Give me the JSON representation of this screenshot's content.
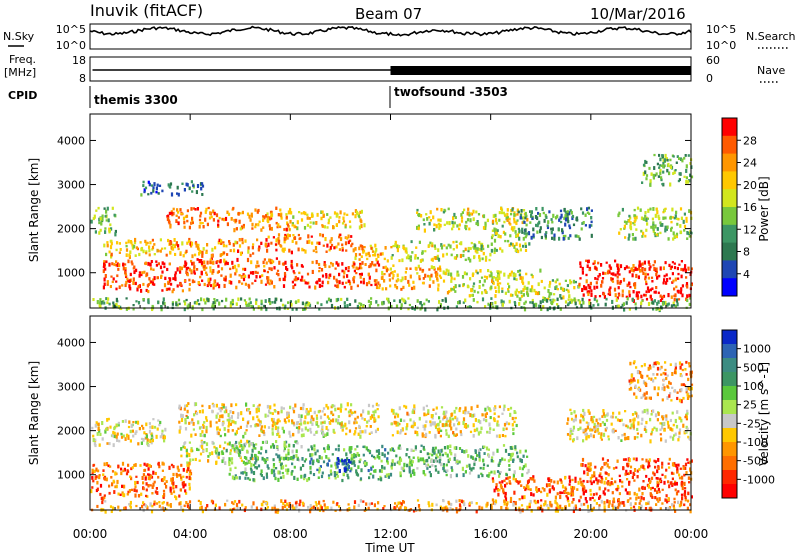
{
  "header": {
    "station": "Inuvik (fitACF)",
    "beam": "Beam 07",
    "date": "10/Mar/2016"
  },
  "top_panels": {
    "nsky_label": "N.Sky",
    "nsearch_label": "N.Search",
    "noise_ticks": [
      "10^5",
      "10^0"
    ],
    "freq_label_line1": "Freq.",
    "freq_label_line2": "[MHz]",
    "freq_ticks": [
      "18",
      "8"
    ],
    "nave_label": "Nave",
    "nave_ticks": [
      "60",
      "0"
    ],
    "cpid_label": "CPID",
    "cpid_segments": [
      {
        "name": "themis 3300",
        "start_hour": 0
      },
      {
        "name": "twofsound -3503",
        "start_hour": 12
      }
    ]
  },
  "chart_data": [
    {
      "type": "heatmap",
      "name": "power",
      "ylabel": "Slant Range [km]",
      "xlim_hours": [
        0,
        24
      ],
      "ylim": [
        200,
        4600
      ],
      "yticks": [
        1000,
        2000,
        3000,
        4000
      ],
      "colorbar": {
        "label": "Power [dB]",
        "ticks": [
          "28",
          "24",
          "20",
          "16",
          "12",
          "8",
          "4"
        ],
        "colors": [
          "#ff0000",
          "#ff5a00",
          "#ff9600",
          "#ffc800",
          "#d2e61e",
          "#78c83c",
          "#3c9664",
          "#2d7850",
          "#1e46b4",
          "#0000ff"
        ]
      },
      "regions": [
        {
          "t0": 0.5,
          "t1": 4.0,
          "r0": 600,
          "r1": 1300,
          "level": 0.9
        },
        {
          "t0": 4.0,
          "t1": 8.0,
          "r0": 700,
          "r1": 1350,
          "level": 0.85
        },
        {
          "t0": 8.0,
          "t1": 11.5,
          "r0": 700,
          "r1": 1300,
          "level": 0.9
        },
        {
          "t0": 11.5,
          "t1": 14.0,
          "r0": 650,
          "r1": 1200,
          "level": 0.7
        },
        {
          "t0": 14.0,
          "t1": 18.0,
          "r0": 500,
          "r1": 1100,
          "level": 0.55
        },
        {
          "t0": 18.0,
          "t1": 19.5,
          "r0": 400,
          "r1": 900,
          "level": 0.5
        },
        {
          "t0": 19.5,
          "t1": 24.0,
          "r0": 400,
          "r1": 1300,
          "level": 0.95
        },
        {
          "t0": 0.5,
          "t1": 3.0,
          "r0": 1400,
          "r1": 1800,
          "level": 0.65
        },
        {
          "t0": 3.0,
          "t1": 6.5,
          "r0": 1400,
          "r1": 1800,
          "level": 0.75
        },
        {
          "t0": 6.5,
          "t1": 10.5,
          "r0": 1500,
          "r1": 1900,
          "level": 0.8
        },
        {
          "t0": 10.5,
          "t1": 12.0,
          "r0": 1300,
          "r1": 1700,
          "level": 0.7
        },
        {
          "t0": 12.0,
          "t1": 16.0,
          "r0": 1300,
          "r1": 1750,
          "level": 0.55
        },
        {
          "t0": 16.0,
          "t1": 17.5,
          "r0": 1500,
          "r1": 2000,
          "level": 0.5
        },
        {
          "t0": 3.0,
          "t1": 5.5,
          "r0": 2050,
          "r1": 2500,
          "level": 0.8
        },
        {
          "t0": 5.5,
          "t1": 8.0,
          "r0": 2000,
          "r1": 2500,
          "level": 0.75
        },
        {
          "t0": 8.0,
          "t1": 11.0,
          "r0": 2050,
          "r1": 2450,
          "level": 0.6
        },
        {
          "t0": 13.0,
          "t1": 17.5,
          "r0": 2000,
          "r1": 2500,
          "level": 0.55
        },
        {
          "t0": 0.0,
          "t1": 1.0,
          "r0": 1900,
          "r1": 2500,
          "level": 0.45
        },
        {
          "t0": 17.0,
          "t1": 20.0,
          "r0": 1800,
          "r1": 2500,
          "level": 0.3
        },
        {
          "t0": 21.0,
          "t1": 24.0,
          "r0": 1800,
          "r1": 2500,
          "level": 0.5
        },
        {
          "t0": 2.0,
          "t1": 4.5,
          "r0": 2800,
          "r1": 3100,
          "level": 0.25
        },
        {
          "t0": 22.0,
          "t1": 24.0,
          "r0": 3000,
          "r1": 3700,
          "level": 0.4
        },
        {
          "t0": 0.0,
          "t1": 24.0,
          "r0": 200,
          "r1": 450,
          "level": 0.4
        }
      ]
    },
    {
      "type": "heatmap",
      "name": "velocity",
      "ylabel": "Slant Range [km]",
      "xlabel": "Time UT",
      "xlim_hours": [
        0,
        24
      ],
      "ylim": [
        200,
        4600
      ],
      "yticks": [
        1000,
        2000,
        3000,
        4000
      ],
      "xticks": [
        "00:00",
        "04:00",
        "08:00",
        "12:00",
        "16:00",
        "20:00",
        "00:00"
      ],
      "colorbar": {
        "label": "Velocity [m s^-1]",
        "ticks": [
          "1000",
          "500",
          "100",
          "25",
          "-25",
          "-100",
          "-500",
          "-1000"
        ],
        "colors": [
          "#0a28c8",
          "#2d64b4",
          "#3c8c82",
          "#3c9664",
          "#5ac83c",
          "#aae650",
          "#c8c8c8",
          "#ffc800",
          "#ff9600",
          "#ff6e00",
          "#ff2800",
          "#ff0000"
        ]
      },
      "regions": [
        {
          "t0": 0.0,
          "t1": 4.0,
          "r0": 500,
          "r1": 1300,
          "level": 0.22
        },
        {
          "t0": 3.5,
          "t1": 6.5,
          "r0": 1300,
          "r1": 1800,
          "level": 0.5
        },
        {
          "t0": 5.5,
          "t1": 8.5,
          "r0": 900,
          "r1": 1800,
          "level": 0.65
        },
        {
          "t0": 8.5,
          "t1": 12.0,
          "r0": 900,
          "r1": 1700,
          "level": 0.68
        },
        {
          "t0": 9.8,
          "t1": 10.4,
          "r0": 1100,
          "r1": 1400,
          "level": 0.95
        },
        {
          "t0": 12.0,
          "t1": 17.5,
          "r0": 1000,
          "r1": 1700,
          "level": 0.62
        },
        {
          "t0": 16.0,
          "t1": 19.5,
          "r0": 400,
          "r1": 1000,
          "level": 0.2
        },
        {
          "t0": 19.5,
          "t1": 24.0,
          "r0": 400,
          "r1": 1400,
          "level": 0.18
        },
        {
          "t0": 3.5,
          "t1": 11.5,
          "r0": 1900,
          "r1": 2650,
          "level": 0.42
        },
        {
          "t0": 12.0,
          "t1": 17.0,
          "r0": 1900,
          "r1": 2600,
          "level": 0.42
        },
        {
          "t0": 19.0,
          "t1": 24.0,
          "r0": 1800,
          "r1": 2500,
          "level": 0.42
        },
        {
          "t0": 0.0,
          "t1": 3.0,
          "r0": 1700,
          "r1": 2300,
          "level": 0.45
        },
        {
          "t0": 21.5,
          "t1": 24.0,
          "r0": 2700,
          "r1": 3600,
          "level": 0.3
        },
        {
          "t0": 0.0,
          "t1": 24.0,
          "r0": 200,
          "r1": 450,
          "level": 0.3
        }
      ]
    }
  ]
}
